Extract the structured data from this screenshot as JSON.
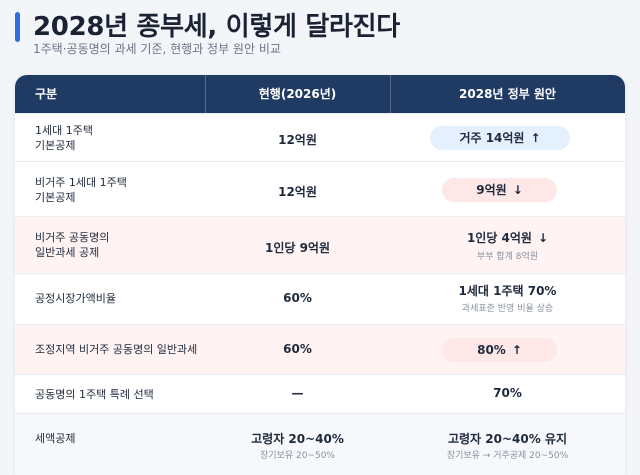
{
  "header": {
    "title": "2028년 종부세, 이렇게 달라진다",
    "subtitle": "1주택·공동명의 과세 기준, 현행과 정부 원안 비교"
  },
  "table": {
    "columns": [
      "구분",
      "현행(2026년)",
      "2028년 정부 원안"
    ],
    "rows": [
      {
        "label_lines": [
          "1세대 1주택",
          "기본공제"
        ],
        "current": "12억원",
        "proposal": "거주 14억원",
        "proposal_arrow": "↑",
        "proposal_note": ""
      },
      {
        "label_lines": [
          "비거주 1세대 1주택",
          "기본공제"
        ],
        "current": "12억원",
        "proposal": "9억원",
        "proposal_arrow": "↓",
        "proposal_note": ""
      },
      {
        "label_lines": [
          "비거주 공동명의",
          "일반과세 공제"
        ],
        "current": "1인당 9억원",
        "proposal": "1인당 4억원",
        "proposal_arrow": "↓",
        "proposal_note": "부부 합계 8억원"
      },
      {
        "label_lines": [
          "공정시장가액비율"
        ],
        "current": "60%",
        "proposal": "1세대 1주택 70%",
        "proposal_arrow": "",
        "proposal_note": "과세표준 반영 비율 상승"
      },
      {
        "label_lines": [
          "조정지역 비거주 공동명의 일반과세"
        ],
        "current": "60%",
        "proposal": "80%",
        "proposal_arrow": "↑",
        "proposal_note": ""
      },
      {
        "label_lines": [
          "공동명의 1주택 특례 선택"
        ],
        "current": "—",
        "proposal": "70%",
        "proposal_arrow": "",
        "proposal_note": ""
      },
      {
        "label_lines": [
          "세액공제"
        ],
        "current": "고령자 20~40%",
        "current_note": "장기보유 20~50%",
        "proposal": "고령자 20~40% 유지",
        "proposal_arrow": "",
        "proposal_note": "장기보유 → 거주공제 20~50%"
      }
    ]
  },
  "colors": {
    "accent": "#2f6fe0",
    "header_bg": "#1f3a63",
    "highlight_row": "#fff4f3",
    "pill_blue": "#e5f0ff",
    "pill_red": "#fde7e7"
  }
}
